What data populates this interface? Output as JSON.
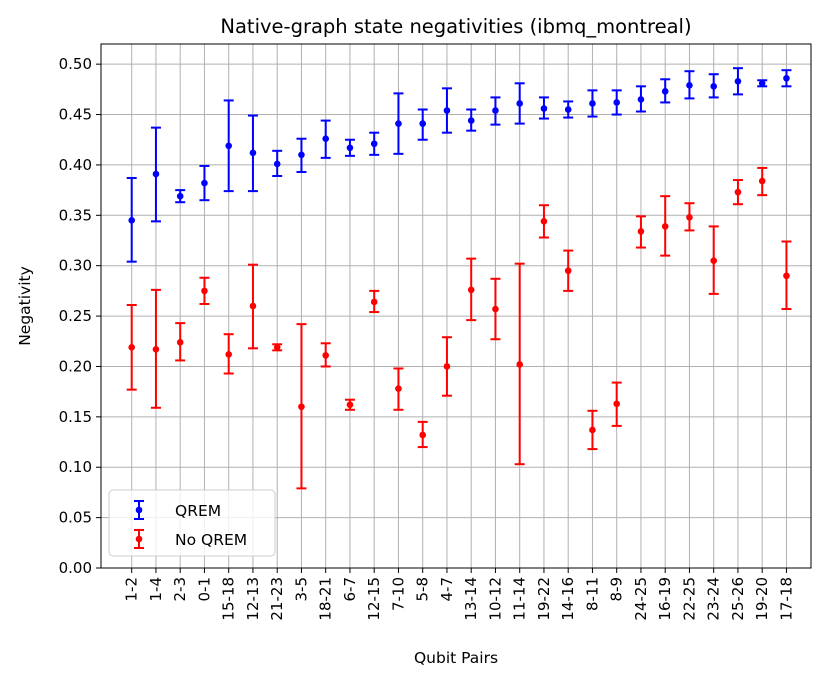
{
  "chart_data": {
    "type": "scatter",
    "title": "Native-graph state negativities (ibmq_montreal)",
    "xlabel": "Qubit Pairs",
    "ylabel": "Negativity",
    "categories": [
      "1-2",
      "1-4",
      "2-3",
      "0-1",
      "15-18",
      "12-13",
      "21-23",
      "3-5",
      "18-21",
      "6-7",
      "12-15",
      "7-10",
      "5-8",
      "4-7",
      "13-14",
      "10-12",
      "11-14",
      "19-22",
      "14-16",
      "8-11",
      "8-9",
      "24-25",
      "16-19",
      "22-25",
      "23-24",
      "25-26",
      "19-20",
      "17-18"
    ],
    "ylim": [
      0,
      0.52
    ],
    "yticks": [
      "0.00",
      "0.05",
      "0.10",
      "0.15",
      "0.20",
      "0.25",
      "0.30",
      "0.35",
      "0.40",
      "0.45",
      "0.50"
    ],
    "grid": true,
    "legend_position": "lower-left",
    "series": [
      {
        "name": "QREM",
        "color": "#0000ff",
        "values": [
          0.345,
          0.391,
          0.369,
          0.382,
          0.419,
          0.412,
          0.401,
          0.41,
          0.426,
          0.417,
          0.421,
          0.441,
          0.441,
          0.454,
          0.444,
          0.454,
          0.461,
          0.456,
          0.455,
          0.461,
          0.462,
          0.465,
          0.473,
          0.479,
          0.478,
          0.483,
          0.481,
          0.486
        ],
        "lower": [
          0.304,
          0.344,
          0.363,
          0.365,
          0.374,
          0.374,
          0.389,
          0.393,
          0.407,
          0.409,
          0.41,
          0.411,
          0.425,
          0.432,
          0.434,
          0.44,
          0.441,
          0.446,
          0.447,
          0.448,
          0.45,
          0.453,
          0.462,
          0.466,
          0.467,
          0.47,
          0.478,
          0.478
        ],
        "upper": [
          0.387,
          0.437,
          0.375,
          0.399,
          0.464,
          0.449,
          0.414,
          0.426,
          0.444,
          0.425,
          0.432,
          0.471,
          0.455,
          0.476,
          0.455,
          0.467,
          0.481,
          0.467,
          0.463,
          0.474,
          0.474,
          0.478,
          0.485,
          0.493,
          0.49,
          0.496,
          0.484,
          0.494
        ]
      },
      {
        "name": "No QREM",
        "color": "#ff0000",
        "values": [
          0.219,
          0.217,
          0.224,
          0.275,
          0.212,
          0.26,
          0.219,
          0.16,
          0.211,
          0.162,
          0.264,
          0.178,
          0.132,
          0.2,
          0.276,
          0.257,
          0.202,
          0.344,
          0.295,
          0.137,
          0.163,
          0.334,
          0.339,
          0.348,
          0.305,
          0.373,
          0.384,
          0.29
        ],
        "lower": [
          0.177,
          0.159,
          0.206,
          0.262,
          0.193,
          0.218,
          0.216,
          0.079,
          0.2,
          0.157,
          0.254,
          0.157,
          0.12,
          0.171,
          0.246,
          0.227,
          0.103,
          0.328,
          0.275,
          0.118,
          0.141,
          0.318,
          0.31,
          0.335,
          0.272,
          0.361,
          0.37,
          0.257
        ],
        "upper": [
          0.261,
          0.276,
          0.243,
          0.288,
          0.232,
          0.301,
          0.222,
          0.242,
          0.223,
          0.167,
          0.275,
          0.198,
          0.145,
          0.229,
          0.307,
          0.287,
          0.302,
          0.36,
          0.315,
          0.156,
          0.184,
          0.349,
          0.369,
          0.362,
          0.339,
          0.385,
          0.397,
          0.324
        ]
      }
    ]
  }
}
